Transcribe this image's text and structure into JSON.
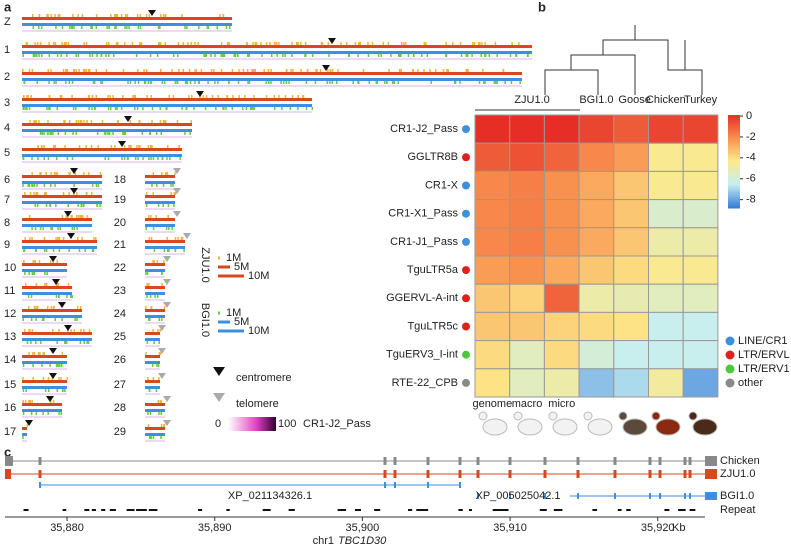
{
  "panel_labels": [
    "a",
    "b",
    "c"
  ],
  "panel_a": {
    "left": [
      "Z",
      "1",
      "2",
      "3",
      "4",
      "5",
      "6",
      "7",
      "8",
      "9",
      "10",
      "11",
      "12",
      "13",
      "14",
      "15",
      "16",
      "17"
    ],
    "right": [
      "18",
      "19",
      "20",
      "21",
      "22",
      "23",
      "24",
      "25",
      "26",
      "27",
      "28",
      "29"
    ],
    "zju": {
      "name": "ZJU1.0",
      "scale": [
        "1M",
        "5M",
        "10M"
      ]
    },
    "bgi": {
      "name": "BGI1.0",
      "scale": [
        "1M",
        "5M",
        "10M"
      ]
    },
    "centromere": "centromere",
    "telomere": "telomere",
    "density": {
      "min": "0",
      "max": "100",
      "name": "CR1-J2_Pass"
    }
  },
  "chart_data": {
    "type": "heatmap",
    "groups": [
      "ZJU1.0",
      "BGI1.0",
      "Goose",
      "Chicken",
      "Turkey"
    ],
    "columns": [
      "genome",
      "macro",
      "micro",
      null,
      null,
      null,
      null
    ],
    "rows": [
      "CR1-J2_Pass",
      "GGLTR8B",
      "CR1-X",
      "CR1-X1_Pass",
      "CR1-J1_Pass",
      "TguLTR5a",
      "GGERVL-A-int",
      "TguLTR5c",
      "TguERV3_I-int",
      "RTE-22_CPB"
    ],
    "row_class": [
      0,
      1,
      0,
      0,
      0,
      1,
      1,
      1,
      2,
      3
    ],
    "classes": [
      {
        "name": "LINE/CR1",
        "color": "#3d8fe0"
      },
      {
        "name": "LTR/ERVL",
        "color": "#e0201b"
      },
      {
        "name": "LTR/ERV1",
        "color": "#4cc93a"
      },
      {
        "name": "other",
        "color": "#8a8a8a"
      }
    ],
    "values": [
      [
        0,
        0,
        0,
        -0.5,
        -1,
        -0.5,
        -0.5
      ],
      [
        -1,
        -0.8,
        -1.2,
        -2,
        -2.5,
        -4.5,
        -4.5
      ],
      [
        -2,
        -1.8,
        -2.2,
        -2.8,
        -3.5,
        -4.5,
        -4.5
      ],
      [
        -2,
        -1.8,
        -2.2,
        -2.8,
        -3.5,
        -5.8,
        -5.8
      ],
      [
        -2,
        -1.8,
        -2.2,
        -2.8,
        -3.5,
        -5,
        -5
      ],
      [
        -2.5,
        -2.2,
        -2.8,
        -3.5,
        -4,
        -4.5,
        -4.5
      ],
      [
        -3.5,
        -3.8,
        -1.2,
        -5,
        -5.2,
        -5.5,
        -5.5
      ],
      [
        -3.5,
        -3.5,
        -3.8,
        -4,
        -4.2,
        -6.5,
        -6.5
      ],
      [
        -4,
        -5.5,
        -4,
        -6,
        -6.5,
        -6.5,
        -6.5
      ],
      [
        -4.2,
        -5.5,
        -5,
        -7.5,
        -7,
        -4.8,
        -8
      ]
    ],
    "clim": [
      -8.8,
      0.1
    ],
    "cticks": [
      0,
      -2,
      -4,
      -6,
      -8
    ],
    "colors": [
      "#3a7fd8",
      "#c6eff1",
      "#fde98a",
      "#f88d4c",
      "#e52a25"
    ]
  },
  "panel_c": {
    "tracks": [
      "Chicken",
      "ZJU1.0",
      "BGI1.0",
      "Repeat"
    ],
    "genes": [
      "XP_021134326.1",
      "XP_005025042.1"
    ],
    "xlim": [
      35875.8,
      35923.2
    ],
    "xticks": [
      {
        "value": 35880,
        "label": "35,880"
      },
      {
        "value": 35890,
        "label": "35,890"
      },
      {
        "value": 35900,
        "label": "35,900"
      },
      {
        "value": 35910,
        "label": "35,910"
      },
      {
        "value": 35920,
        "label": "35,920"
      }
    ],
    "unit": "Kb",
    "chrom": "chr1",
    "gene": "TBC1D30"
  }
}
